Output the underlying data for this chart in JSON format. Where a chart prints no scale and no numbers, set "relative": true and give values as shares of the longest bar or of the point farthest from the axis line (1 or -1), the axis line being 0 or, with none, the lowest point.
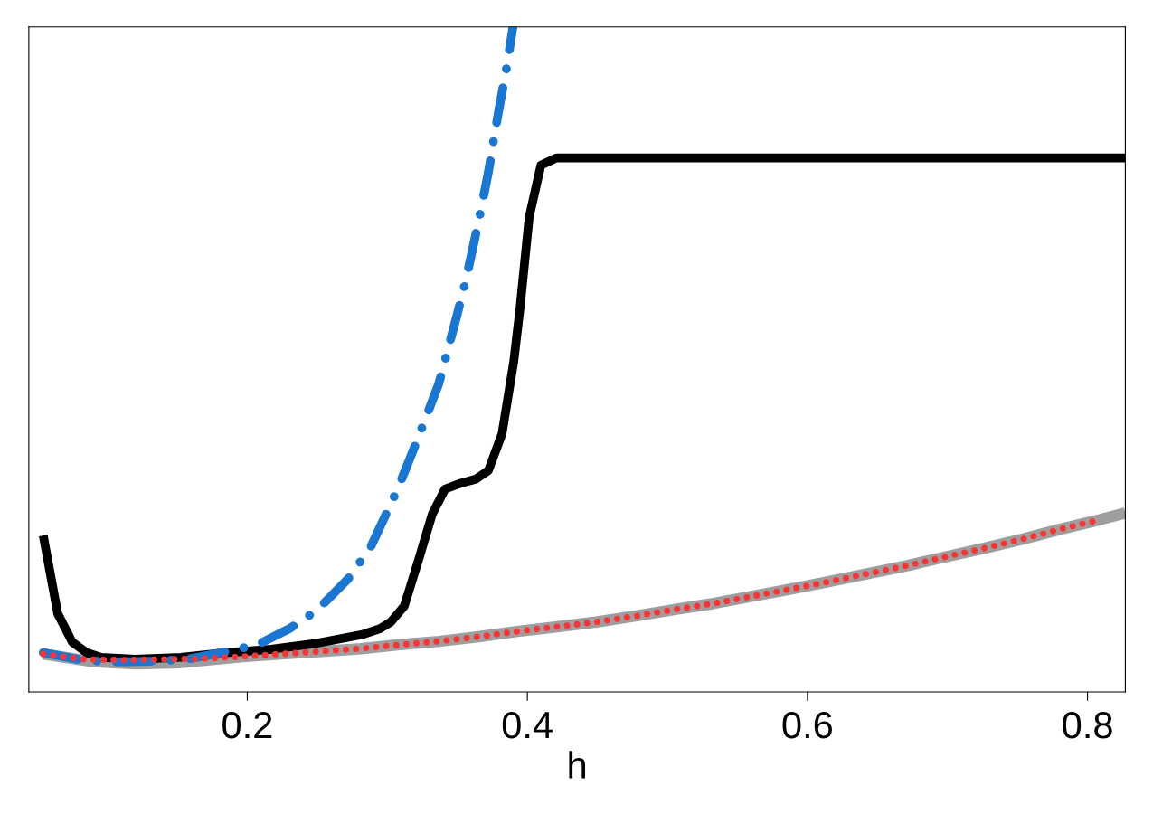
{
  "chart_data": {
    "type": "line",
    "relative": true,
    "xlabel": "h",
    "xlim": [
      0.044,
      0.827
    ],
    "xticks": [
      0.2,
      0.4,
      0.6,
      0.8
    ],
    "tick_labels": "x",
    "grid": false,
    "legend": false,
    "marker": "none",
    "series": [
      {
        "color": "#9e9e9e",
        "line_style": "solid",
        "x": [
          0.0543,
          0.0879,
          0.12,
          0.1525,
          0.1964,
          0.2242,
          0.2527,
          0.2811,
          0.3089,
          0.3367,
          0.3651,
          0.3929,
          0.4213,
          0.4491,
          0.4769,
          0.5053,
          0.5331,
          0.5609,
          0.5887,
          0.6158,
          0.6436,
          0.6714,
          0.6985,
          0.7263,
          0.7541,
          0.7812,
          0.809,
          0.827
        ],
        "values": [
          0.057,
          0.046,
          0.042,
          0.044,
          0.053,
          0.057,
          0.061,
          0.065,
          0.071,
          0.076,
          0.083,
          0.091,
          0.098,
          0.105,
          0.114,
          0.124,
          0.133,
          0.144,
          0.155,
          0.166,
          0.178,
          0.19,
          0.203,
          0.216,
          0.23,
          0.245,
          0.259,
          0.269
        ]
      },
      {
        "color": "#000000",
        "line_style": "solid",
        "x": [
          0.0543,
          0.0646,
          0.075,
          0.0853,
          0.0956,
          0.12,
          0.1525,
          0.1848,
          0.2171,
          0.2494,
          0.2817,
          0.2947,
          0.3024,
          0.3121,
          0.3218,
          0.3322,
          0.3412,
          0.3528,
          0.3632,
          0.3722,
          0.3819,
          0.3903,
          0.3948,
          0.4013,
          0.4097,
          0.4207,
          0.827
        ],
        "values": [
          0.235,
          0.118,
          0.075,
          0.059,
          0.052,
          0.049,
          0.052,
          0.059,
          0.064,
          0.073,
          0.086,
          0.095,
          0.105,
          0.129,
          0.195,
          0.268,
          0.305,
          0.314,
          0.32,
          0.333,
          0.388,
          0.497,
          0.578,
          0.714,
          0.792,
          0.803,
          0.803
        ]
      },
      {
        "color": "#1976d2",
        "line_style": "dashdot",
        "x": [
          0.0543,
          0.0814,
          0.104,
          0.1331,
          0.159,
          0.1816,
          0.2074,
          0.23,
          0.2494,
          0.272,
          0.2882,
          0.3076,
          0.3205,
          0.3367,
          0.3496,
          0.3561,
          0.3658,
          0.3722,
          0.3787,
          0.3852,
          0.3897
        ],
        "values": [
          0.059,
          0.048,
          0.045,
          0.046,
          0.05,
          0.059,
          0.071,
          0.095,
          0.122,
          0.17,
          0.218,
          0.306,
          0.374,
          0.463,
          0.565,
          0.619,
          0.714,
          0.782,
          0.864,
          0.939,
          1.0
        ]
      },
      {
        "color": "#ff3333",
        "line_style": "dotted",
        "x": [
          0.0543,
          0.0827,
          0.1111,
          0.1396,
          0.1674,
          0.1964,
          0.2242,
          0.2527,
          0.2811,
          0.3089,
          0.3367,
          0.3651,
          0.3929,
          0.4213,
          0.4491,
          0.4769,
          0.5053,
          0.5331,
          0.5609,
          0.5887,
          0.6158,
          0.6436,
          0.6714,
          0.6985,
          0.7263,
          0.7541,
          0.7812,
          0.809
        ],
        "values": [
          0.057,
          0.049,
          0.048,
          0.049,
          0.05,
          0.053,
          0.057,
          0.061,
          0.065,
          0.071,
          0.076,
          0.083,
          0.091,
          0.098,
          0.105,
          0.114,
          0.124,
          0.133,
          0.144,
          0.155,
          0.166,
          0.178,
          0.19,
          0.203,
          0.216,
          0.23,
          0.245,
          0.259
        ]
      }
    ]
  }
}
